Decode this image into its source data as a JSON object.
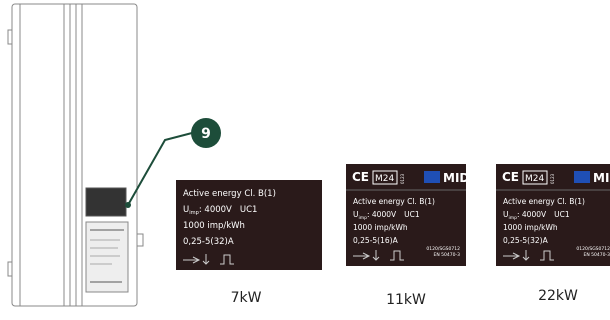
{
  "callout": "9",
  "labels": [
    {
      "header": null,
      "energy": "Active energy Cl. B(1)",
      "u": "U",
      "sub": "imp",
      "voltage": ": 4000V",
      "uc": "UC1",
      "rate": "1000 imp/kWh",
      "current": "0,25-5(32)A",
      "caption": "7kW"
    },
    {
      "header": {
        "ce": "CE",
        "m": "M24",
        "nb": "0123",
        "mid": "MID"
      },
      "energy": "Active energy Cl. B(1)",
      "u": "U",
      "sub": "imp",
      "voltage": ": 4000V",
      "uc": "UC1",
      "rate": "1000 imp/kWh",
      "current": "0,25-5(16)A",
      "cert": "0120/SGS0712",
      "norm": "EN 50470-3",
      "caption": "11kW"
    },
    {
      "header": {
        "ce": "CE",
        "m": "M24",
        "nb": "0123",
        "mid": "MID"
      },
      "energy": "Active energy Cl. B(1)",
      "u": "U",
      "sub": "imp",
      "voltage": ": 4000V",
      "uc": "UC1",
      "rate": "1000 imp/kWh",
      "current": "0,25-5(32)A",
      "cert": "0120/SGS0712",
      "norm": "EN 50470-3",
      "caption": "22kW"
    }
  ]
}
